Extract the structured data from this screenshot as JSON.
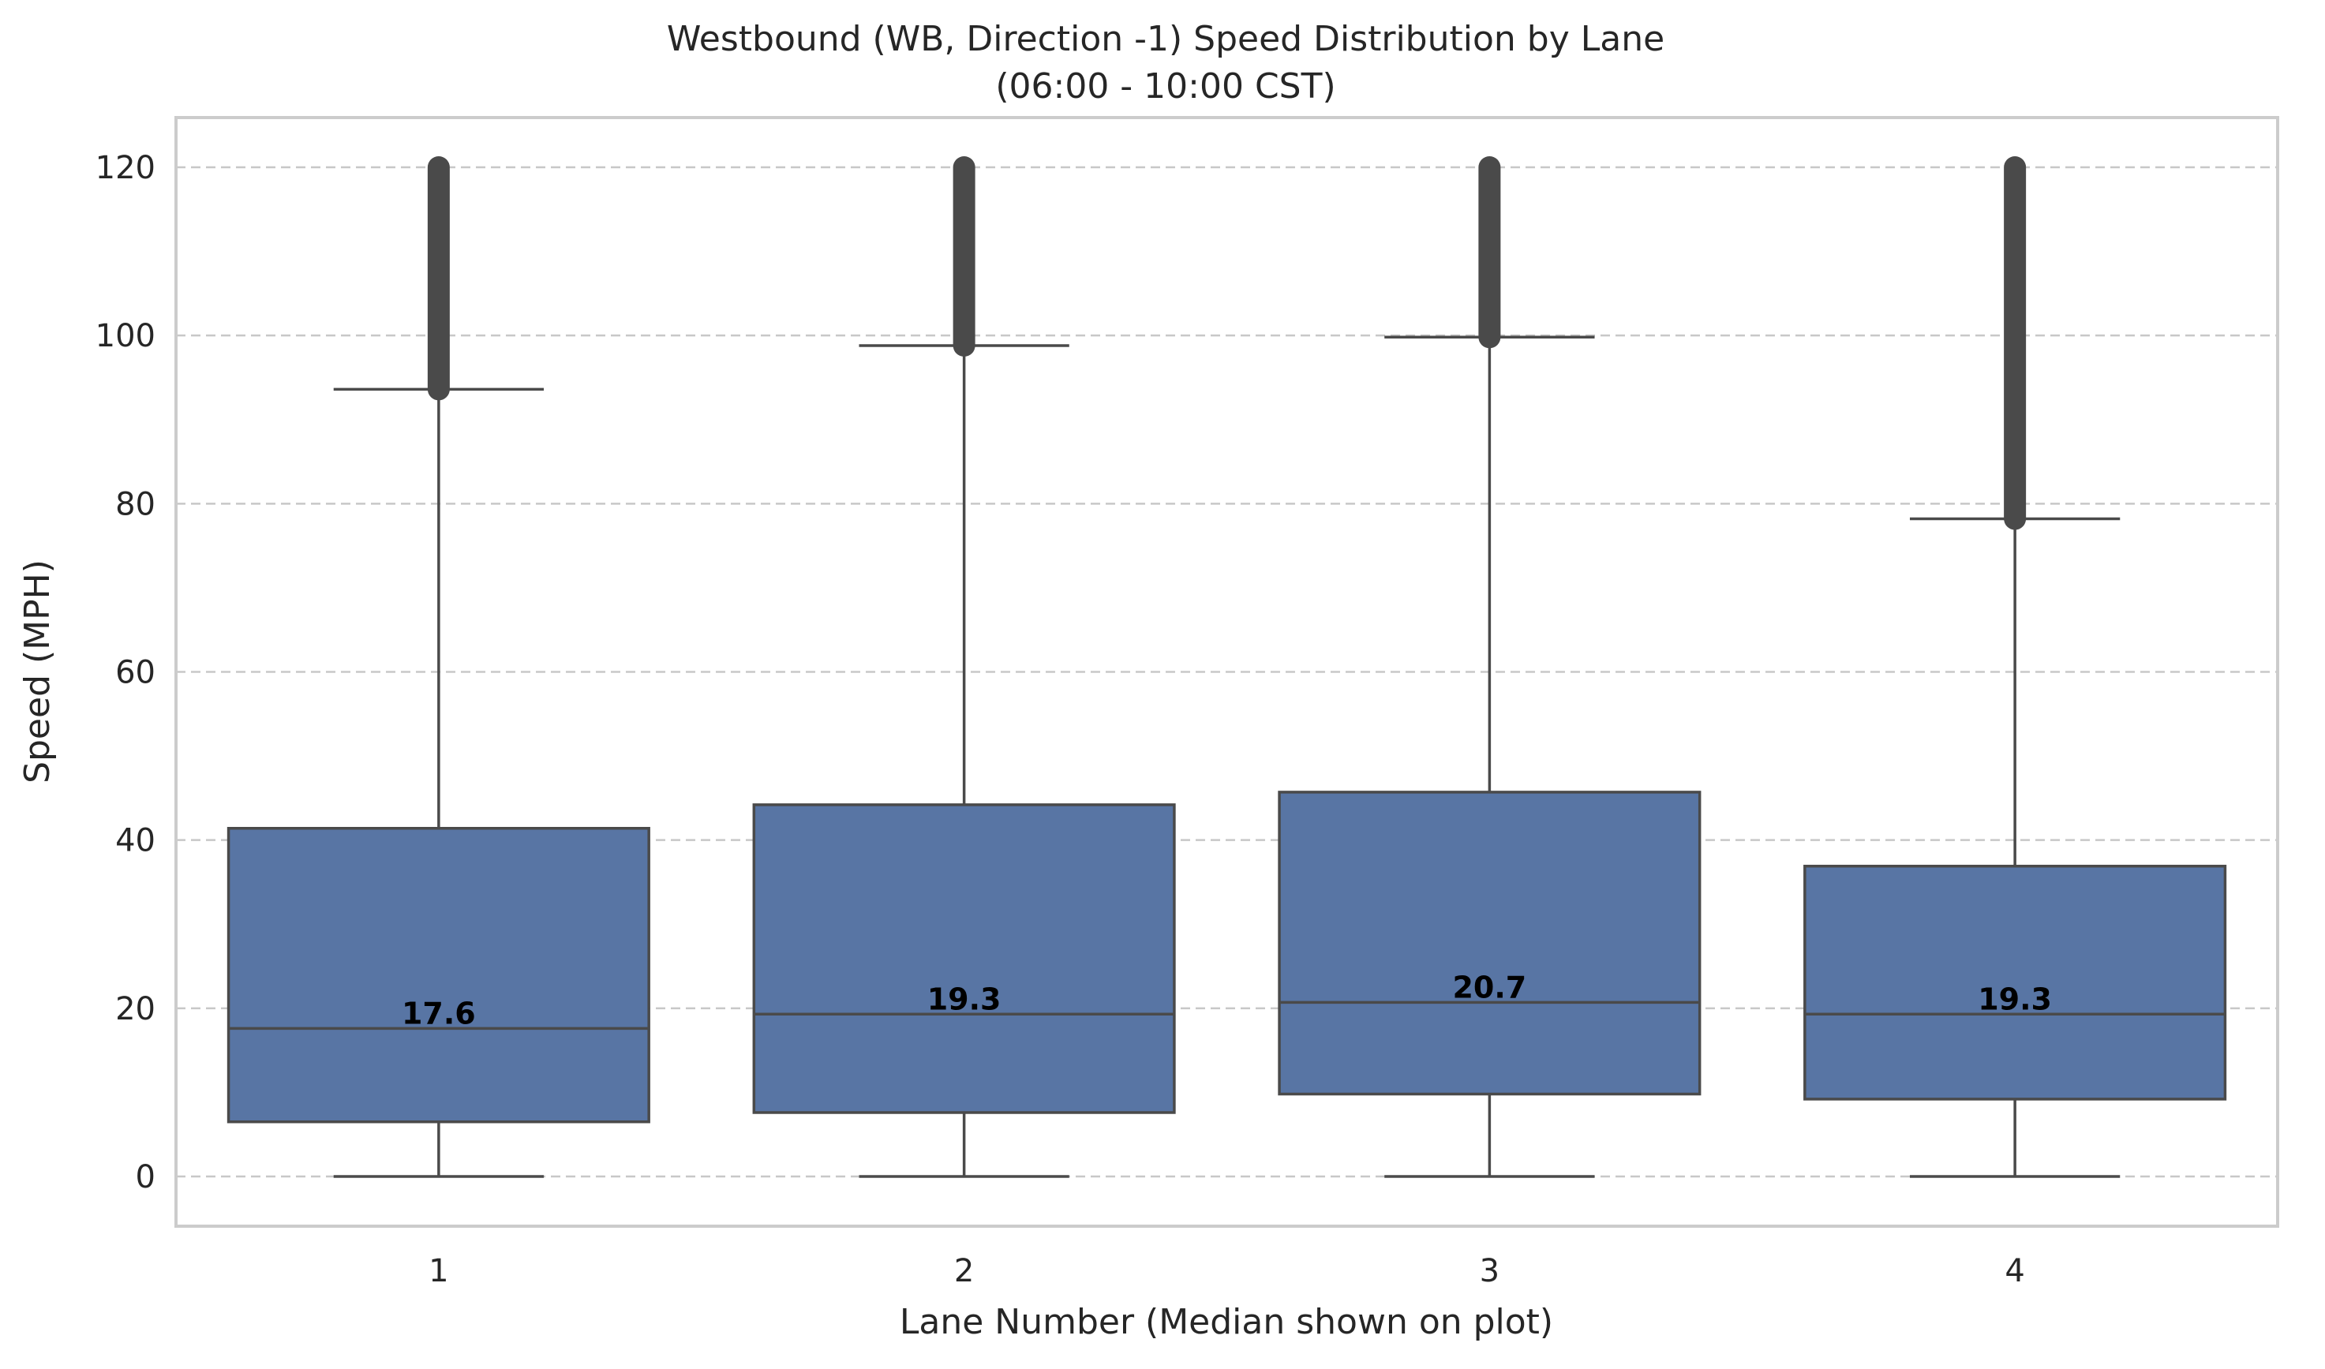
{
  "chart_data": {
    "type": "box",
    "title": "Westbound (WB, Direction -1) Speed Distribution by Lane",
    "subtitle": "(06:00 - 10:00 CST)",
    "xlabel": "Lane Number (Median shown on plot)",
    "ylabel": "Speed (MPH)",
    "categories": [
      "1",
      "2",
      "3",
      "4"
    ],
    "ylim": [
      -6,
      126
    ],
    "yticks": [
      0,
      20,
      40,
      60,
      80,
      100,
      120
    ],
    "ytick_labels": [
      "0",
      "20",
      "40",
      "60",
      "80",
      "100",
      "120"
    ],
    "grid": "horizontal dashed",
    "boxes": [
      {
        "lane": "1",
        "whisker_low": 0,
        "q1": 6.5,
        "median": 17.6,
        "q3": 41.4,
        "whisker_high": 93.6,
        "outliers_from": 93.6,
        "outliers_to": 120,
        "median_label": "17.6"
      },
      {
        "lane": "2",
        "whisker_low": 0,
        "q1": 7.6,
        "median": 19.3,
        "q3": 44.2,
        "whisker_high": 98.8,
        "outliers_from": 98.8,
        "outliers_to": 120,
        "median_label": "19.3"
      },
      {
        "lane": "3",
        "whisker_low": 0,
        "q1": 9.8,
        "median": 20.7,
        "q3": 45.7,
        "whisker_high": 99.8,
        "outliers_from": 99.8,
        "outliers_to": 120,
        "median_label": "20.7"
      },
      {
        "lane": "4",
        "whisker_low": 0,
        "q1": 9.2,
        "median": 19.3,
        "q3": 36.9,
        "whisker_high": 78.2,
        "outliers_from": 78.2,
        "outliers_to": 120,
        "median_label": "19.3"
      }
    ],
    "colors": {
      "box_fill": "#5875a4",
      "line": "#4a4a4a",
      "outlier": "#4a4a4a",
      "grid": "#c8c8c8",
      "frame": "#cccccc",
      "text": "#262626"
    }
  }
}
